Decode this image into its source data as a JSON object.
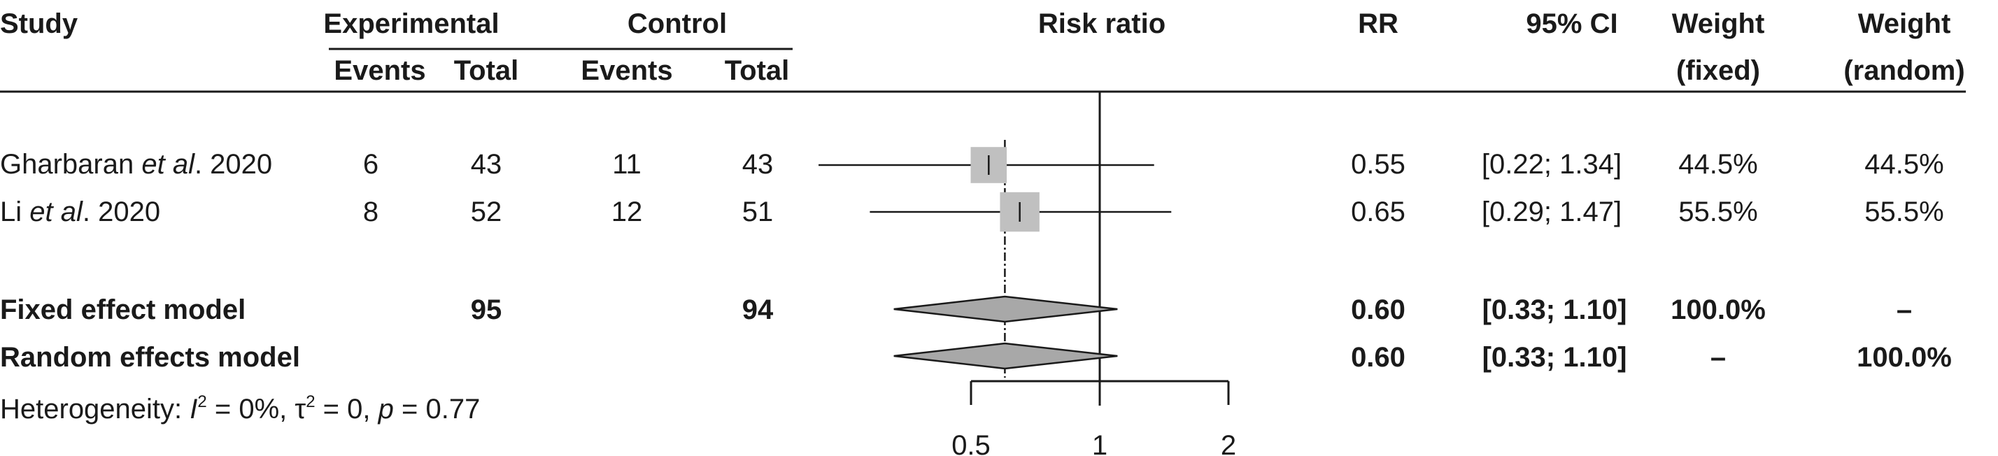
{
  "header": {
    "study": "Study",
    "experimental": "Experimental",
    "control": "Control",
    "events": "Events",
    "total": "Total",
    "risk_ratio": "Risk ratio",
    "rr": "RR",
    "ci": "95% CI",
    "weight": "Weight",
    "fixed": "(fixed)",
    "random": "(random)"
  },
  "studies": [
    {
      "name_pre": "Gharbaran ",
      "name_ital": "et al",
      "name_post": ". 2020",
      "exp_events": "6",
      "exp_total": "43",
      "ctrl_events": "11",
      "ctrl_total": "43",
      "rr": "0.55",
      "ci": "[0.22; 1.34]",
      "w_fixed": "44.5%",
      "w_random": "44.5%"
    },
    {
      "name_pre": "Li ",
      "name_ital": "et al",
      "name_post": ". 2020",
      "exp_events": "8",
      "exp_total": "52",
      "ctrl_events": "12",
      "ctrl_total": "51",
      "rr": "0.65",
      "ci": "[0.29; 1.47]",
      "w_fixed": "55.5%",
      "w_random": "55.5%"
    }
  ],
  "fixed_model": {
    "label": "Fixed effect model",
    "exp_total": "95",
    "ctrl_total": "94",
    "rr": "0.60",
    "ci": "[0.33; 1.10]",
    "w_fixed": "100.0%",
    "w_random": "–"
  },
  "random_model": {
    "label": "Random effects model",
    "rr": "0.60",
    "ci": "[0.33; 1.10]",
    "w_fixed": "–",
    "w_random": "100.0%"
  },
  "heterogeneity": {
    "prefix": "Heterogeneity: ",
    "i2_sym": "I",
    "i2_sup": "2",
    "i2_val": " = 0%, τ",
    "tau_sup": "2",
    "tau_val": " = 0, ",
    "p_sym": "p",
    "p_val": " = 0.77"
  },
  "chart_data": {
    "type": "forest",
    "scale": "log",
    "xlim": [
      0.5,
      2
    ],
    "ticks": [
      0.5,
      1,
      2
    ],
    "tick_labels": [
      "0.5",
      "1",
      "2"
    ],
    "null_value": 1,
    "colors": {
      "box": "#c0c0c0",
      "diamond": "#a8a8a8",
      "line": "#1a1a1a"
    },
    "studies": [
      {
        "rr": 0.55,
        "lower": 0.22,
        "upper": 1.34,
        "weight": 44.5
      },
      {
        "rr": 0.65,
        "lower": 0.29,
        "upper": 1.47,
        "weight": 55.5
      }
    ],
    "pooled": [
      {
        "model": "fixed",
        "rr": 0.6,
        "lower": 0.33,
        "upper": 1.1
      },
      {
        "model": "random",
        "rr": 0.6,
        "lower": 0.33,
        "upper": 1.1
      }
    ]
  }
}
